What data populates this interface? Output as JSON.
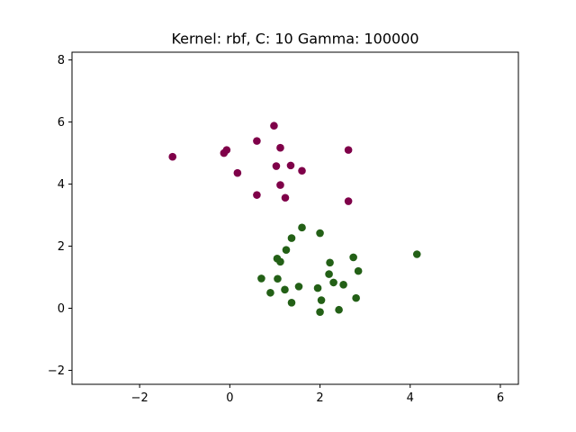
{
  "chart_data": {
    "type": "scatter",
    "title": "Kernel: rbf, C: 10 Gamma: 100000",
    "xlabel": "",
    "ylabel": "",
    "xlim": [
      -3.5,
      6.4
    ],
    "ylim": [
      -2.45,
      8.25
    ],
    "xticks": [
      -2,
      0,
      2,
      4,
      6
    ],
    "yticks": [
      -2,
      0,
      2,
      4,
      6,
      8
    ],
    "grid": false,
    "series": [
      {
        "color": "#7f0049",
        "points": [
          [
            -1.27,
            4.88
          ],
          [
            -0.13,
            5.0
          ],
          [
            -0.07,
            5.1
          ],
          [
            0.17,
            4.36
          ],
          [
            0.6,
            5.39
          ],
          [
            0.6,
            3.65
          ],
          [
            0.98,
            5.88
          ],
          [
            1.03,
            4.58
          ],
          [
            1.12,
            5.17
          ],
          [
            1.12,
            3.97
          ],
          [
            1.23,
            3.56
          ],
          [
            1.35,
            4.6
          ],
          [
            1.6,
            4.43
          ],
          [
            2.63,
            5.1
          ],
          [
            2.63,
            3.45
          ]
        ]
      },
      {
        "color": "#236016",
        "points": [
          [
            0.7,
            0.96
          ],
          [
            0.9,
            0.5
          ],
          [
            1.05,
            1.6
          ],
          [
            1.06,
            0.95
          ],
          [
            1.12,
            1.5
          ],
          [
            1.22,
            0.6
          ],
          [
            1.25,
            1.88
          ],
          [
            1.37,
            2.26
          ],
          [
            1.37,
            0.18
          ],
          [
            1.53,
            0.7
          ],
          [
            1.6,
            2.6
          ],
          [
            1.95,
            0.65
          ],
          [
            2.0,
            2.42
          ],
          [
            2.0,
            -0.12
          ],
          [
            2.03,
            0.26
          ],
          [
            2.2,
            1.1
          ],
          [
            2.22,
            1.47
          ],
          [
            2.3,
            0.83
          ],
          [
            2.42,
            -0.05
          ],
          [
            2.52,
            0.76
          ],
          [
            2.74,
            1.64
          ],
          [
            2.8,
            0.33
          ],
          [
            2.85,
            1.2
          ],
          [
            4.15,
            1.74
          ]
        ]
      }
    ]
  }
}
